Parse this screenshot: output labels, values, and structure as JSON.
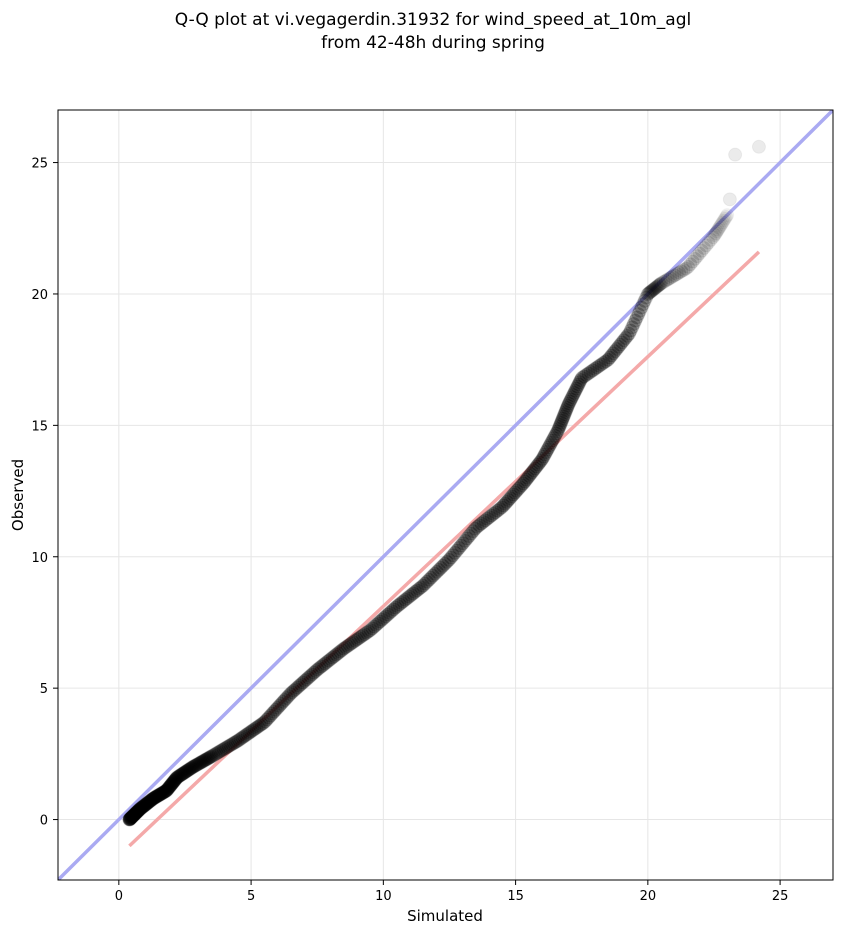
{
  "chart_data": {
    "type": "scatter",
    "title_line1": "Q-Q plot at vi.vegagerdin.31932 for wind_speed_at_10m_agl",
    "title_line2": "from 42-48h during spring",
    "xlabel": "Simulated",
    "ylabel": "Observed",
    "xlim": [
      -2.3,
      27
    ],
    "ylim": [
      -2.3,
      27
    ],
    "xticks": [
      0,
      5,
      10,
      15,
      20,
      25
    ],
    "yticks": [
      0,
      5,
      10,
      15,
      20,
      25
    ],
    "grid": true,
    "colors": {
      "points": "#000000",
      "identity_line": "#aaaaf2",
      "fit_line": "#f4a9a9",
      "grid": "#e6e6e6"
    },
    "identity_line": {
      "x": [
        -2.3,
        27
      ],
      "y": [
        -2.3,
        27
      ]
    },
    "fit_line": {
      "x": [
        0.4,
        24.2
      ],
      "y": [
        -1.0,
        21.6
      ]
    },
    "series_knots": [
      [
        0.4,
        0.0
      ],
      [
        0.8,
        0.4
      ],
      [
        1.3,
        0.8
      ],
      [
        1.8,
        1.1
      ],
      [
        2.2,
        1.6
      ],
      [
        2.8,
        2.0
      ],
      [
        3.5,
        2.4
      ],
      [
        4.5,
        3.0
      ],
      [
        5.5,
        3.7
      ],
      [
        6.5,
        4.8
      ],
      [
        7.5,
        5.7
      ],
      [
        8.5,
        6.5
      ],
      [
        9.5,
        7.2
      ],
      [
        10.5,
        8.1
      ],
      [
        11.5,
        8.9
      ],
      [
        12.5,
        9.9
      ],
      [
        13.5,
        11.1
      ],
      [
        14.5,
        11.9
      ],
      [
        15.3,
        12.8
      ],
      [
        16.0,
        13.7
      ],
      [
        16.6,
        14.8
      ],
      [
        17.0,
        15.8
      ],
      [
        17.5,
        16.8
      ],
      [
        18.5,
        17.5
      ],
      [
        19.3,
        18.5
      ],
      [
        20.0,
        20.0
      ],
      [
        20.5,
        20.4
      ],
      [
        21.5,
        21.0
      ],
      [
        22.5,
        22.2
      ],
      [
        23.0,
        23.0
      ]
    ],
    "series_count": 420,
    "outlier_points": [
      [
        23.1,
        23.6
      ],
      [
        23.3,
        25.3
      ],
      [
        24.2,
        25.6
      ]
    ]
  }
}
